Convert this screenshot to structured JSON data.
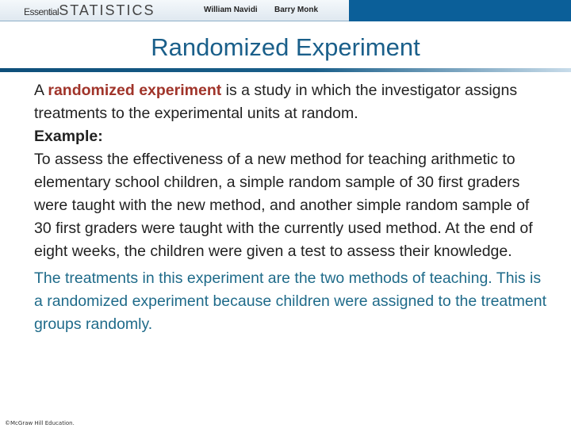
{
  "header": {
    "brand_prefix": "Essential",
    "brand_main": "STATISTICS",
    "author1": "William Navidi",
    "author2": "Barry Monk",
    "accent": "#0b5f99"
  },
  "title": "Randomized Experiment",
  "definition": {
    "lead": "A ",
    "term": "randomized experiment",
    "rest": " is a study in which the investigator assigns treatments to the experimental units at random."
  },
  "example_label": "Example:",
  "example_text": "To assess the effectiveness of a new method for teaching arithmetic to elementary school children, a simple random sample of 30 first graders were taught with the new method, and another simple random sample of 30 first graders were taught with the currently used method. At the end of eight weeks, the children were given a test to assess their knowledge.",
  "conclusion": "The treatments in this experiment are the two methods of teaching. This is a randomized experiment because children were assigned to the treatment groups randomly.",
  "footer": "©McGraw Hill Education."
}
